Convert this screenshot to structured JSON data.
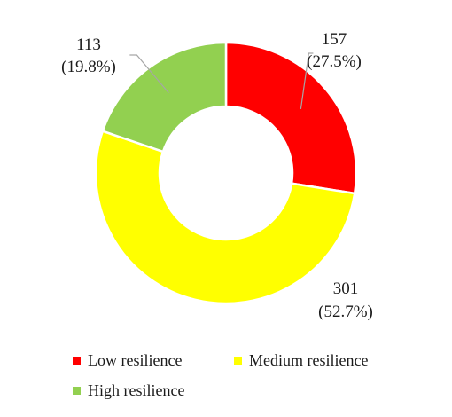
{
  "chart_data": {
    "type": "pie",
    "donut": true,
    "categories": [
      "Low resilience",
      "Medium resilience",
      "High resilience"
    ],
    "values": [
      157,
      301,
      113
    ],
    "percent_labels": [
      "(27.5%)",
      "(52.7%)",
      "(19.8%)"
    ],
    "value_labels": [
      "157",
      "301",
      "113"
    ],
    "colors": [
      "#ff0000",
      "#ffff00",
      "#92d050"
    ],
    "legend": "bottom"
  }
}
